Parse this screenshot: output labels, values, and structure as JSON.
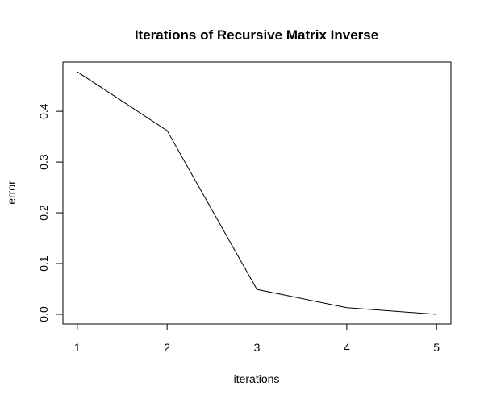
{
  "chart_data": {
    "type": "line",
    "title": "Iterations of Recursive Matrix Inverse",
    "xlabel": "iterations",
    "ylabel": "error",
    "x": [
      1,
      2,
      3,
      4,
      5
    ],
    "series": [
      {
        "values": [
          0.478,
          0.362,
          0.049,
          0.013,
          0.0
        ]
      }
    ],
    "xticks": [
      1,
      2,
      3,
      4,
      5
    ],
    "xtick_labels": [
      "1",
      "2",
      "3",
      "4",
      "5"
    ],
    "yticks": [
      0.0,
      0.1,
      0.2,
      0.3,
      0.4
    ],
    "ytick_labels": [
      "0.0",
      "0.1",
      "0.2",
      "0.3",
      "0.4"
    ],
    "xlim": [
      0.84,
      5.16
    ],
    "ylim": [
      -0.0191,
      0.4971
    ],
    "grid": false,
    "legend": "none",
    "line_color": "#000000"
  }
}
